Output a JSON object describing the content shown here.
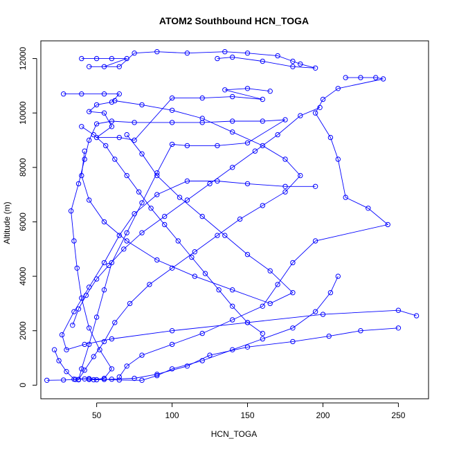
{
  "chart_data": {
    "type": "line",
    "title": "ATOM2 Southbound HCN_TOGA",
    "xlabel": "HCN_TOGA",
    "ylabel": "Altitude (m)",
    "xlim": [
      13,
      270
    ],
    "ylim": [
      -500,
      12650
    ],
    "x_ticks": [
      50,
      100,
      150,
      200,
      250
    ],
    "y_ticks": [
      0,
      2000,
      4000,
      6000,
      8000,
      10000,
      12000
    ],
    "grid": false,
    "legend": "none",
    "series_color": "#0000ff",
    "markers": "open-circle",
    "series": [
      {
        "values": [
          {
            "x": 17,
            "y": 180
          },
          {
            "x": 28,
            "y": 190
          },
          {
            "x": 36,
            "y": 210
          },
          {
            "x": 42,
            "y": 230
          },
          {
            "x": 48,
            "y": 200
          },
          {
            "x": 55,
            "y": 250
          },
          {
            "x": 60,
            "y": 600
          },
          {
            "x": 52,
            "y": 1300
          },
          {
            "x": 45,
            "y": 2100
          },
          {
            "x": 40,
            "y": 3200
          },
          {
            "x": 37,
            "y": 4300
          },
          {
            "x": 35,
            "y": 5300
          },
          {
            "x": 33,
            "y": 6400
          },
          {
            "x": 38,
            "y": 7400
          },
          {
            "x": 42,
            "y": 8300
          },
          {
            "x": 45,
            "y": 9000
          },
          {
            "x": 50,
            "y": 9600
          },
          {
            "x": 60,
            "y": 9700
          },
          {
            "x": 75,
            "y": 9650
          },
          {
            "x": 100,
            "y": 9650
          },
          {
            "x": 120,
            "y": 9650
          },
          {
            "x": 140,
            "y": 9700
          },
          {
            "x": 160,
            "y": 9700
          },
          {
            "x": 175,
            "y": 9750
          },
          {
            "x": 150,
            "y": 8900
          },
          {
            "x": 130,
            "y": 8800
          },
          {
            "x": 110,
            "y": 8800
          },
          {
            "x": 100,
            "y": 8850
          },
          {
            "x": 90,
            "y": 7800
          },
          {
            "x": 80,
            "y": 6700
          },
          {
            "x": 70,
            "y": 5600
          },
          {
            "x": 60,
            "y": 4500
          },
          {
            "x": 55,
            "y": 3500
          },
          {
            "x": 50,
            "y": 2500
          },
          {
            "x": 45,
            "y": 1500
          },
          {
            "x": 40,
            "y": 600
          },
          {
            "x": 38,
            "y": 200
          }
        ]
      },
      {
        "values": [
          {
            "x": 40,
            "y": 12000
          },
          {
            "x": 50,
            "y": 12000
          },
          {
            "x": 60,
            "y": 12000
          },
          {
            "x": 70,
            "y": 12000
          },
          {
            "x": 55,
            "y": 11700
          },
          {
            "x": 45,
            "y": 11700
          },
          {
            "x": 65,
            "y": 11700
          },
          {
            "x": 75,
            "y": 12200
          },
          {
            "x": 90,
            "y": 12250
          },
          {
            "x": 110,
            "y": 12200
          },
          {
            "x": 135,
            "y": 12250
          },
          {
            "x": 150,
            "y": 12200
          },
          {
            "x": 170,
            "y": 12100
          },
          {
            "x": 180,
            "y": 11900
          },
          {
            "x": 185,
            "y": 11800
          },
          {
            "x": 195,
            "y": 11650
          },
          {
            "x": 180,
            "y": 11700
          },
          {
            "x": 160,
            "y": 11900
          },
          {
            "x": 140,
            "y": 12050
          },
          {
            "x": 130,
            "y": 12000
          }
        ]
      },
      {
        "values": [
          {
            "x": 28,
            "y": 10700
          },
          {
            "x": 40,
            "y": 10700
          },
          {
            "x": 55,
            "y": 10700
          },
          {
            "x": 65,
            "y": 10700
          },
          {
            "x": 60,
            "y": 10400
          },
          {
            "x": 50,
            "y": 10300
          },
          {
            "x": 45,
            "y": 10050
          },
          {
            "x": 55,
            "y": 10000
          },
          {
            "x": 60,
            "y": 9500
          },
          {
            "x": 50,
            "y": 9100
          },
          {
            "x": 65,
            "y": 9100
          },
          {
            "x": 75,
            "y": 9000
          },
          {
            "x": 100,
            "y": 10550
          },
          {
            "x": 120,
            "y": 10550
          },
          {
            "x": 140,
            "y": 10600
          },
          {
            "x": 160,
            "y": 10500
          },
          {
            "x": 135,
            "y": 10850
          },
          {
            "x": 150,
            "y": 10900
          },
          {
            "x": 165,
            "y": 10800
          }
        ]
      },
      {
        "values": [
          {
            "x": 215,
            "y": 11300
          },
          {
            "x": 225,
            "y": 11300
          },
          {
            "x": 235,
            "y": 11300
          },
          {
            "x": 240,
            "y": 11250
          },
          {
            "x": 210,
            "y": 10900
          },
          {
            "x": 200,
            "y": 10500
          },
          {
            "x": 195,
            "y": 10000
          },
          {
            "x": 205,
            "y": 9100
          },
          {
            "x": 210,
            "y": 8300
          },
          {
            "x": 215,
            "y": 6900
          },
          {
            "x": 230,
            "y": 6500
          },
          {
            "x": 243,
            "y": 5900
          },
          {
            "x": 195,
            "y": 5300
          },
          {
            "x": 180,
            "y": 4500
          },
          {
            "x": 170,
            "y": 3700
          },
          {
            "x": 160,
            "y": 2900
          },
          {
            "x": 140,
            "y": 2400
          },
          {
            "x": 120,
            "y": 1900
          },
          {
            "x": 100,
            "y": 1500
          },
          {
            "x": 80,
            "y": 1100
          },
          {
            "x": 70,
            "y": 700
          },
          {
            "x": 65,
            "y": 300
          }
        ]
      },
      {
        "values": [
          {
            "x": 262,
            "y": 2550
          },
          {
            "x": 250,
            "y": 2750
          },
          {
            "x": 200,
            "y": 2600
          },
          {
            "x": 150,
            "y": 2300
          },
          {
            "x": 100,
            "y": 2000
          },
          {
            "x": 60,
            "y": 1700
          },
          {
            "x": 42,
            "y": 1500
          },
          {
            "x": 30,
            "y": 1300
          },
          {
            "x": 27,
            "y": 1850
          },
          {
            "x": 35,
            "y": 2700
          },
          {
            "x": 45,
            "y": 3600
          },
          {
            "x": 55,
            "y": 4500
          },
          {
            "x": 65,
            "y": 5500
          },
          {
            "x": 75,
            "y": 6300
          },
          {
            "x": 90,
            "y": 7000
          },
          {
            "x": 110,
            "y": 7500
          },
          {
            "x": 130,
            "y": 7500
          },
          {
            "x": 150,
            "y": 7400
          },
          {
            "x": 175,
            "y": 7300
          },
          {
            "x": 195,
            "y": 7300
          }
        ]
      },
      {
        "values": [
          {
            "x": 250,
            "y": 2100
          },
          {
            "x": 225,
            "y": 2000
          },
          {
            "x": 204,
            "y": 1800
          },
          {
            "x": 180,
            "y": 1600
          },
          {
            "x": 150,
            "y": 1400
          },
          {
            "x": 125,
            "y": 1100
          },
          {
            "x": 110,
            "y": 700
          },
          {
            "x": 90,
            "y": 400
          },
          {
            "x": 75,
            "y": 250
          },
          {
            "x": 60,
            "y": 220
          },
          {
            "x": 50,
            "y": 200
          },
          {
            "x": 45,
            "y": 210
          }
        ]
      },
      {
        "values": [
          {
            "x": 38,
            "y": 210
          },
          {
            "x": 42,
            "y": 550
          },
          {
            "x": 48,
            "y": 1050
          },
          {
            "x": 55,
            "y": 1600
          },
          {
            "x": 62,
            "y": 2300
          },
          {
            "x": 72,
            "y": 3000
          },
          {
            "x": 85,
            "y": 3700
          },
          {
            "x": 100,
            "y": 4300
          },
          {
            "x": 115,
            "y": 4900
          },
          {
            "x": 130,
            "y": 5500
          },
          {
            "x": 145,
            "y": 6100
          },
          {
            "x": 160,
            "y": 6600
          },
          {
            "x": 175,
            "y": 7100
          },
          {
            "x": 185,
            "y": 7700
          },
          {
            "x": 175,
            "y": 8300
          },
          {
            "x": 160,
            "y": 8800
          },
          {
            "x": 140,
            "y": 9300
          },
          {
            "x": 120,
            "y": 9800
          },
          {
            "x": 100,
            "y": 10100
          },
          {
            "x": 80,
            "y": 10300
          },
          {
            "x": 62,
            "y": 10450
          }
        ]
      },
      {
        "values": [
          {
            "x": 70,
            "y": 9200
          },
          {
            "x": 80,
            "y": 8500
          },
          {
            "x": 90,
            "y": 7700
          },
          {
            "x": 105,
            "y": 6900
          },
          {
            "x": 120,
            "y": 6200
          },
          {
            "x": 135,
            "y": 5500
          },
          {
            "x": 150,
            "y": 4800
          },
          {
            "x": 165,
            "y": 4200
          },
          {
            "x": 180,
            "y": 3400
          },
          {
            "x": 165,
            "y": 3000
          },
          {
            "x": 140,
            "y": 3500
          },
          {
            "x": 115,
            "y": 4000
          },
          {
            "x": 90,
            "y": 4600
          },
          {
            "x": 70,
            "y": 5300
          },
          {
            "x": 55,
            "y": 6000
          },
          {
            "x": 45,
            "y": 6800
          },
          {
            "x": 40,
            "y": 7700
          },
          {
            "x": 42,
            "y": 8600
          }
        ]
      },
      {
        "values": [
          {
            "x": 34,
            "y": 2200
          },
          {
            "x": 38,
            "y": 2800
          },
          {
            "x": 43,
            "y": 3300
          },
          {
            "x": 50,
            "y": 3900
          },
          {
            "x": 58,
            "y": 4400
          },
          {
            "x": 68,
            "y": 5000
          },
          {
            "x": 80,
            "y": 5600
          },
          {
            "x": 95,
            "y": 6200
          },
          {
            "x": 110,
            "y": 6800
          },
          {
            "x": 125,
            "y": 7400
          },
          {
            "x": 140,
            "y": 8000
          },
          {
            "x": 155,
            "y": 8600
          },
          {
            "x": 170,
            "y": 9200
          },
          {
            "x": 185,
            "y": 9900
          },
          {
            "x": 198,
            "y": 10200
          }
        ]
      },
      {
        "values": [
          {
            "x": 22,
            "y": 1300
          },
          {
            "x": 25,
            "y": 900
          },
          {
            "x": 30,
            "y": 500
          },
          {
            "x": 35,
            "y": 220
          },
          {
            "x": 45,
            "y": 240
          },
          {
            "x": 55,
            "y": 210
          },
          {
            "x": 65,
            "y": 190
          },
          {
            "x": 80,
            "y": 180
          },
          {
            "x": 90,
            "y": 350
          },
          {
            "x": 100,
            "y": 600
          },
          {
            "x": 120,
            "y": 900
          },
          {
            "x": 140,
            "y": 1300
          },
          {
            "x": 160,
            "y": 1700
          },
          {
            "x": 180,
            "y": 2100
          },
          {
            "x": 195,
            "y": 2700
          },
          {
            "x": 205,
            "y": 3400
          },
          {
            "x": 210,
            "y": 4000
          }
        ]
      },
      {
        "values": [
          {
            "x": 40,
            "y": 9500
          },
          {
            "x": 48,
            "y": 9200
          },
          {
            "x": 56,
            "y": 8800
          },
          {
            "x": 62,
            "y": 8300
          },
          {
            "x": 70,
            "y": 7700
          },
          {
            "x": 78,
            "y": 7100
          },
          {
            "x": 86,
            "y": 6500
          },
          {
            "x": 95,
            "y": 5900
          },
          {
            "x": 104,
            "y": 5300
          },
          {
            "x": 113,
            "y": 4700
          },
          {
            "x": 122,
            "y": 4100
          },
          {
            "x": 131,
            "y": 3500
          },
          {
            "x": 140,
            "y": 2900
          },
          {
            "x": 150,
            "y": 2300
          },
          {
            "x": 160,
            "y": 1900
          }
        ]
      }
    ]
  }
}
